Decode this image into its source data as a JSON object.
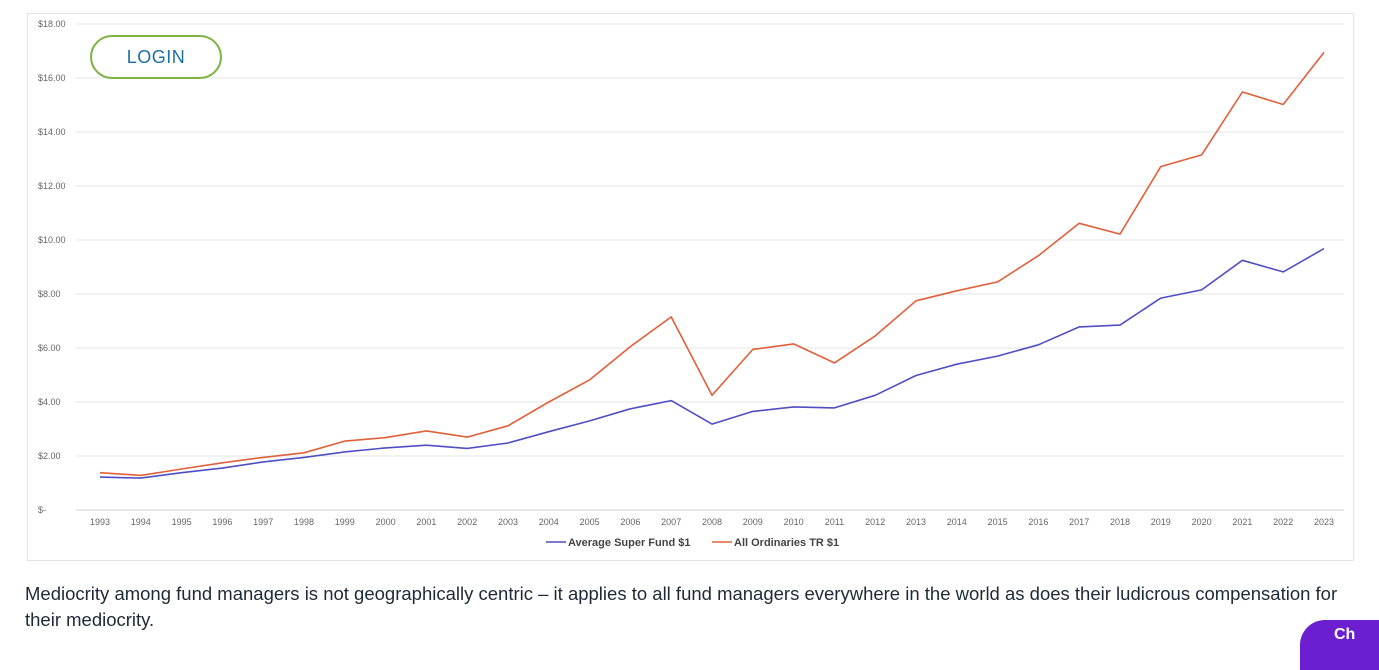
{
  "login_button": {
    "label": "LOGIN"
  },
  "caption": "Mediocrity among fund managers is not geographically centric – it applies to all fund managers everywhere in the world as does their ludicrous compensation for their mediocrity.",
  "chat_widget": {
    "label": "Ch"
  },
  "chart_data": {
    "type": "line",
    "title": "",
    "xlabel": "",
    "ylabel": "",
    "x": [
      "1993",
      "1994",
      "1995",
      "1996",
      "1997",
      "1998",
      "1999",
      "2000",
      "2001",
      "2002",
      "2003",
      "2004",
      "2005",
      "2006",
      "2007",
      "2008",
      "2009",
      "2010",
      "2011",
      "2012",
      "2013",
      "2014",
      "2015",
      "2016",
      "2017",
      "2018",
      "2019",
      "2020",
      "2021",
      "2022",
      "2023"
    ],
    "ylim": [
      0,
      18
    ],
    "y_ticks": [
      0,
      2,
      4,
      6,
      8,
      10,
      12,
      14,
      16,
      18
    ],
    "y_tick_labels": [
      "$-",
      "$2.00",
      "$4.00",
      "$6.00",
      "$8.00",
      "$10.00",
      "$12.00",
      "$14.00",
      "$16.00",
      "$18.00"
    ],
    "grid": true,
    "legend_position": "bottom",
    "series": [
      {
        "name": "Average Super Fund $1",
        "color": "#4f4fc4",
        "values": [
          1.22,
          1.18,
          1.38,
          1.55,
          1.78,
          1.95,
          2.15,
          2.3,
          2.4,
          2.28,
          2.48,
          2.9,
          3.3,
          3.75,
          4.05,
          3.18,
          3.65,
          3.82,
          3.78,
          4.25,
          4.98,
          5.4,
          5.7,
          6.12,
          6.78,
          6.85,
          7.85,
          8.15,
          9.25,
          8.82,
          9.68
        ]
      },
      {
        "name": "All Ordinaries TR $1",
        "color": "#e0603a",
        "values": [
          1.38,
          1.28,
          1.52,
          1.75,
          1.95,
          2.12,
          2.55,
          2.68,
          2.93,
          2.7,
          3.12,
          4.0,
          4.82,
          6.05,
          7.15,
          4.25,
          5.95,
          6.15,
          5.45,
          6.45,
          7.75,
          8.12,
          8.45,
          9.42,
          10.62,
          10.22,
          12.72,
          13.15,
          15.48,
          15.02,
          16.95
        ]
      }
    ]
  }
}
